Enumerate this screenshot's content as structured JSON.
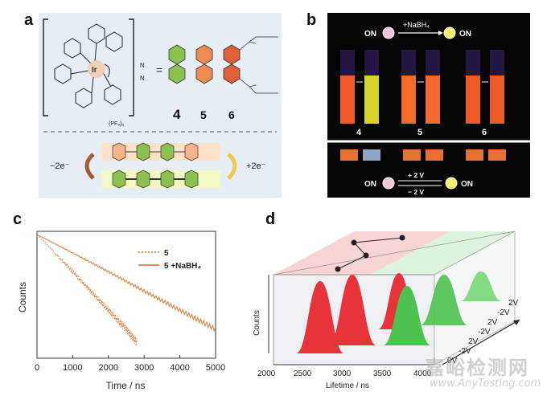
{
  "panels": {
    "a": {
      "letter": "a",
      "counter_ion": "(PF₆)₅",
      "metal": "Ir",
      "n_label": "N",
      "equals": "=",
      "ligands": [
        "4",
        "5",
        "6"
      ],
      "minus_2e": "−2e⁻",
      "plus_2e": "+2e⁻",
      "colors": {
        "ligand4": "#8cc152",
        "ligand5": "#f08b53",
        "ligand6": "#e0603a",
        "bg": "#e6edf5"
      }
    },
    "b": {
      "letter": "b",
      "on_left": "ON",
      "on_right": "ON",
      "reagent": "+NaBH₄",
      "samples": [
        "4",
        "5",
        "6"
      ],
      "plus_2v": "+ 2 V",
      "minus_2v": "− 2 V",
      "on_left_bottom": "ON",
      "on_right_bottom": "ON"
    },
    "c": {
      "letter": "c",
      "legend": [
        {
          "label": "5",
          "style": "dotted",
          "color": "#d9823f"
        },
        {
          "label": "5 +NaBH₄",
          "style": "solid",
          "color": "#d9823f"
        }
      ]
    },
    "d": {
      "letter": "d",
      "zlabel": "Counts",
      "xlabel": "Lifetime / ns",
      "x_ticks": [
        "2000",
        "2500",
        "3000",
        "3500",
        "4000"
      ],
      "cycle_ticks": [
        "0V",
        "-2V",
        "2V",
        "-2V",
        "2V",
        "-2V",
        "2V"
      ],
      "peak_colors": {
        "red": "#e8333a",
        "green": "#4ec24e"
      }
    }
  },
  "chart_data": {
    "type": "line",
    "title": "",
    "xlabel": "Time / ns",
    "ylabel": "Counts",
    "xlim": [
      0,
      5000
    ],
    "x_ticks": [
      0,
      1000,
      2000,
      3000,
      4000,
      5000
    ],
    "y_scale": "log",
    "series": [
      {
        "name": "5",
        "style": "dotted",
        "x": [
          0,
          500,
          1000,
          1500,
          2000,
          2500,
          2800
        ],
        "values": [
          1.0,
          0.62,
          0.38,
          0.23,
          0.14,
          0.085,
          0.06
        ]
      },
      {
        "name": "5 +NaBH4",
        "style": "solid",
        "x": [
          0,
          1000,
          2000,
          3000,
          4000,
          5000
        ],
        "values": [
          1.0,
          0.62,
          0.38,
          0.23,
          0.14,
          0.085
        ]
      }
    ]
  },
  "watermark": {
    "text": "嘉峪检测网",
    "url": "www.AnyTesting.com"
  }
}
